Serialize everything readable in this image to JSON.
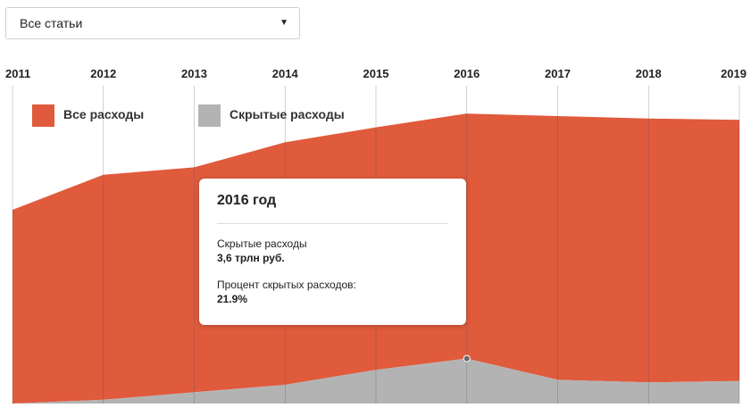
{
  "filter": {
    "selected": "Все статьи",
    "caret": "▼"
  },
  "colors": {
    "total": "#e05a3c",
    "hidden": "#b3b3b3",
    "gridline": "#555555"
  },
  "chart_data": {
    "type": "area",
    "x": [
      "2011",
      "2012",
      "2013",
      "2014",
      "2015",
      "2016",
      "2017",
      "2018",
      "2019"
    ],
    "series": [
      {
        "name": "Все расходы",
        "values": [
          15.5,
          18.3,
          18.9,
          20.9,
          22.1,
          23.2,
          23.0,
          22.8,
          22.7
        ]
      },
      {
        "name": "Скрытые расходы",
        "values": [
          0.0,
          0.3,
          0.9,
          1.5,
          2.7,
          3.6,
          1.9,
          1.7,
          1.8
        ]
      }
    ],
    "legend": [
      {
        "label": "Все расходы",
        "color": "#e05a3c"
      },
      {
        "label": "Скрытые расходы",
        "color": "#b3b3b3"
      }
    ],
    "legend_position": "top-left",
    "grid": true,
    "highlight_index": 5,
    "tooltip": {
      "title": "2016 год",
      "hidden_label": "Скрытые расходы",
      "hidden_value": "3,6 трлн руб.",
      "percent_label": "Процент скрытых расходов:",
      "percent_value": "21.9%"
    }
  }
}
